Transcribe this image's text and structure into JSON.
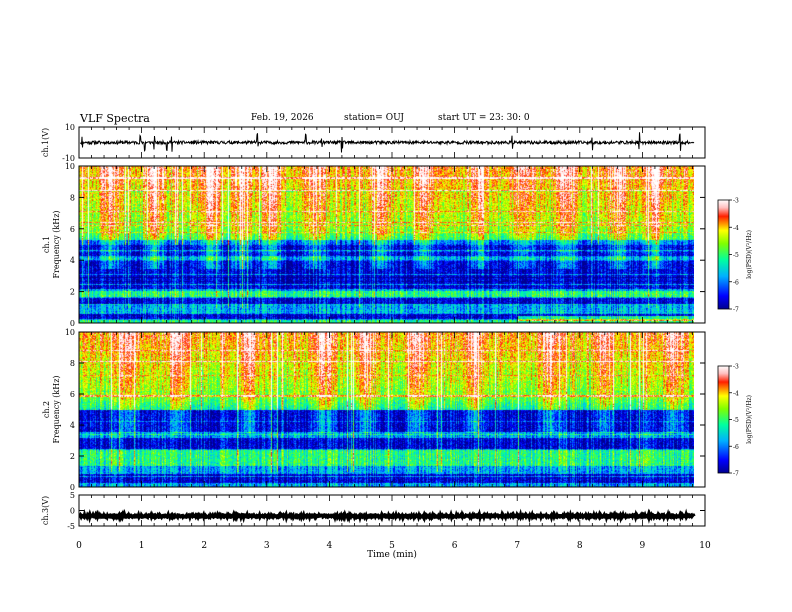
{
  "header": {
    "title": "VLF Spectra",
    "date": "Feb. 19, 2026",
    "station": "station= OUJ",
    "start": "start  UT  =   23: 30: 0"
  },
  "chart_data": [
    {
      "type": "line",
      "name": "ch1-waveform",
      "ylabel": "ch.1(V)",
      "ylim": [
        -10,
        10
      ],
      "yticks": [
        "10",
        "-10"
      ],
      "baseline": 0,
      "amplitude": 1,
      "spike_times_min": [
        0.05,
        0.98,
        1.05,
        1.2,
        1.4,
        1.48,
        2.85,
        3.62,
        3.88,
        4.2,
        6.92,
        8.2,
        8.95,
        9.6
      ]
    },
    {
      "type": "heatmap",
      "name": "ch1-spectrogram",
      "ylabel": "ch.1\nFrequency (kHz)",
      "ylim": [
        0,
        10
      ],
      "yticks": [
        "0",
        "2",
        "4",
        "6",
        "8",
        "10"
      ],
      "xlim": [
        0,
        10
      ],
      "colorbar": {
        "label": "log(PSD)(V²/Hz)",
        "range": [
          -7,
          -3
        ],
        "ticks": [
          "-3",
          "-4",
          "-5",
          "-6",
          "-7"
        ]
      },
      "dark_bands_khz": [
        [
          0.3,
          0.6
        ],
        [
          1.2,
          1.6
        ],
        [
          2.2,
          3.0
        ],
        [
          3.0,
          4.0
        ],
        [
          4.3,
          5.3
        ]
      ],
      "bright_bands_khz": [
        [
          0.0,
          0.25
        ],
        [
          1.7,
          2.1
        ],
        [
          6.0,
          10.0
        ]
      ],
      "burst_times_min": [
        0.5,
        1.2,
        2.1,
        2.6,
        3.1,
        3.75,
        4.8,
        5.5,
        6.4,
        7.1,
        7.8,
        8.6,
        9.2
      ],
      "highlight": "late bright band near 0.3 kHz from 7 to 9.8 min"
    },
    {
      "type": "heatmap",
      "name": "ch2-spectrogram",
      "ylabel": "ch.2\nFrequency (kHz)",
      "ylim": [
        0,
        10
      ],
      "yticks": [
        "0",
        "2",
        "4",
        "6",
        "8",
        "10"
      ],
      "xlim": [
        0,
        10
      ],
      "colorbar": {
        "label": "log(PSD)(V²/Hz)",
        "range": [
          -7,
          -3
        ],
        "ticks": [
          "-3",
          "-4",
          "-5",
          "-6",
          "-7"
        ]
      },
      "dark_bands_khz": [
        [
          0.3,
          0.9
        ],
        [
          2.5,
          3.2
        ],
        [
          3.6,
          5.0
        ]
      ],
      "bright_bands_khz": [
        [
          1.4,
          2.4
        ],
        [
          6.0,
          10.0
        ]
      ],
      "burst_times_min": [
        0.8,
        1.6,
        2.7,
        3.9,
        4.6,
        5.4,
        6.3,
        7.5,
        8.4,
        9.5
      ]
    },
    {
      "type": "line",
      "name": "ch3-waveform",
      "ylabel": "ch.3(V)",
      "ylim": [
        -5,
        5
      ],
      "yticks": [
        "5",
        "0",
        "-5"
      ],
      "baseline": -1.8,
      "amplitude": 0.35
    }
  ],
  "xaxis": {
    "label": "Time (min)",
    "range": [
      0,
      10
    ],
    "ticks": [
      "0",
      "1",
      "2",
      "3",
      "4",
      "5",
      "6",
      "7",
      "8",
      "9",
      "10"
    ],
    "data_end": 9.83
  }
}
